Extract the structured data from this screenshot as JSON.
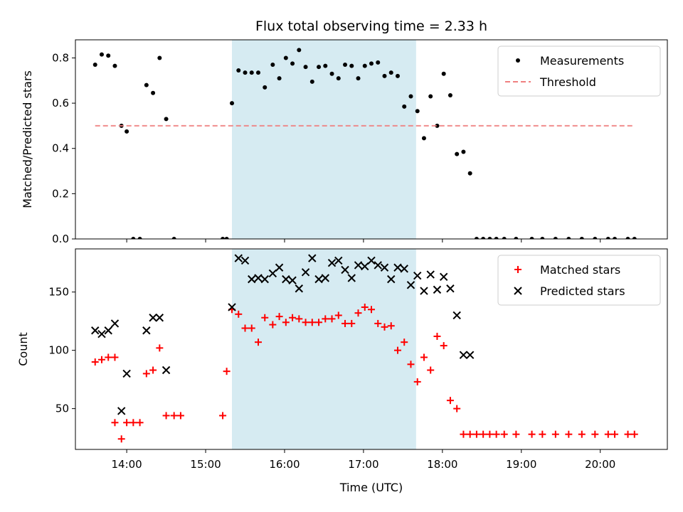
{
  "chart_data": [
    {
      "type": "scatter",
      "title": "Flux total observing time = 2.33 h",
      "xlabel": "",
      "ylabel": "Matched/Predicted stars",
      "xlim": [
        "13:21",
        "20:51"
      ],
      "ylim": [
        0,
        0.88
      ],
      "yticks": [
        0.0,
        0.2,
        0.4,
        0.6,
        0.8
      ],
      "ytick_labels": [
        "0.0",
        "0.2",
        "0.4",
        "0.6",
        "0.8"
      ],
      "shaded_span": {
        "x_start": "15:20",
        "x_end": "17:40",
        "color": "#add8e6"
      },
      "legend": {
        "position": "upper-right"
      },
      "series": [
        {
          "name": "Measurements",
          "color": "#000000",
          "marker": "dot",
          "x": [
            "13:36",
            "13:41",
            "13:46",
            "13:51",
            "13:56",
            "14:00",
            "14:05",
            "14:10",
            "14:15",
            "14:20",
            "14:25",
            "14:30",
            "14:36",
            "15:13",
            "15:16",
            "15:20",
            "15:25",
            "15:30",
            "15:35",
            "15:40",
            "15:45",
            "15:51",
            "15:56",
            "16:01",
            "16:06",
            "16:11",
            "16:16",
            "16:21",
            "16:26",
            "16:31",
            "16:36",
            "16:41",
            "16:46",
            "16:51",
            "16:56",
            "17:01",
            "17:06",
            "17:11",
            "17:16",
            "17:21",
            "17:26",
            "17:31",
            "17:36",
            "17:41",
            "17:46",
            "17:51",
            "17:56",
            "18:01",
            "18:06",
            "18:11",
            "18:16",
            "18:21",
            "18:26",
            "18:31",
            "18:36",
            "18:41",
            "18:47",
            "18:56",
            "19:08",
            "19:16",
            "19:26",
            "19:36",
            "19:46",
            "19:56",
            "20:06",
            "20:11",
            "20:21",
            "20:26"
          ],
          "y": [
            0.77,
            0.815,
            0.81,
            0.765,
            0.5,
            0.475,
            0.0,
            0.0,
            0.68,
            0.645,
            0.8,
            0.53,
            0.0,
            0.0,
            0.0,
            0.6,
            0.745,
            0.735,
            0.735,
            0.735,
            0.67,
            0.77,
            0.71,
            0.8,
            0.775,
            0.835,
            0.76,
            0.695,
            0.76,
            0.765,
            0.73,
            0.71,
            0.77,
            0.765,
            0.71,
            0.765,
            0.775,
            0.78,
            0.72,
            0.735,
            0.72,
            0.585,
            0.63,
            0.565,
            0.445,
            0.63,
            0.5,
            0.73,
            0.635,
            0.375,
            0.385,
            0.29,
            0.0,
            0.0,
            0.0,
            0.0,
            0.0,
            0.0,
            0.0,
            0.0,
            0.0,
            0.0,
            0.0,
            0.0,
            0.0,
            0.0,
            0.0,
            0.0
          ]
        },
        {
          "name": "Threshold",
          "color": "#f08080",
          "line_style": "dashed",
          "x": [
            "13:36",
            "20:26"
          ],
          "y": [
            0.5,
            0.5
          ]
        }
      ]
    },
    {
      "type": "scatter",
      "title": "",
      "xlabel": "Time (UTC)",
      "ylabel": "Count",
      "xlim": [
        "13:21",
        "20:51"
      ],
      "ylim": [
        15,
        187
      ],
      "xticks": [
        "14:00",
        "15:00",
        "16:00",
        "17:00",
        "18:00",
        "19:00",
        "20:00"
      ],
      "xtick_labels": [
        "14:00",
        "15:00",
        "16:00",
        "17:00",
        "18:00",
        "19:00",
        "20:00"
      ],
      "yticks": [
        50,
        100,
        150
      ],
      "ytick_labels": [
        "50",
        "100",
        "150"
      ],
      "shaded_span": {
        "x_start": "15:20",
        "x_end": "17:40",
        "color": "#add8e6"
      },
      "legend": {
        "position": "upper-right"
      },
      "series": [
        {
          "name": "Matched stars",
          "color": "#ff0000",
          "marker": "plus",
          "x": [
            "13:36",
            "13:41",
            "13:46",
            "13:51",
            "13:56",
            "13:51",
            "14:00",
            "14:05",
            "14:10",
            "14:15",
            "14:20",
            "14:25",
            "14:30",
            "14:36",
            "14:41",
            "15:13",
            "15:16",
            "15:20",
            "15:25",
            "15:30",
            "15:35",
            "15:40",
            "15:45",
            "15:51",
            "15:56",
            "16:01",
            "16:06",
            "16:11",
            "16:16",
            "16:21",
            "16:26",
            "16:31",
            "16:36",
            "16:41",
            "16:46",
            "16:51",
            "16:56",
            "17:01",
            "17:06",
            "17:11",
            "17:16",
            "17:21",
            "17:26",
            "17:31",
            "17:36",
            "17:41",
            "17:46",
            "17:51",
            "17:56",
            "18:01",
            "18:06",
            "18:11",
            "18:16",
            "18:21",
            "18:26",
            "18:31",
            "18:36",
            "18:41",
            "18:47",
            "18:56",
            "19:08",
            "19:16",
            "19:26",
            "19:36",
            "19:46",
            "19:56",
            "20:06",
            "20:11",
            "20:21",
            "20:26"
          ],
          "y": [
            90,
            92,
            94,
            94,
            24,
            38,
            38,
            38,
            38,
            80,
            83,
            102,
            44,
            44,
            44,
            44,
            82,
            135,
            131,
            119,
            119,
            107,
            128,
            122,
            129,
            124,
            128,
            127,
            124,
            124,
            124,
            127,
            127,
            130,
            123,
            123,
            132,
            137,
            135,
            123,
            120,
            121,
            100,
            107,
            88,
            73,
            94,
            83,
            112,
            104,
            57,
            50,
            28,
            28,
            28,
            28,
            28,
            28,
            28,
            28,
            28,
            28,
            28,
            28,
            28,
            28,
            28,
            28,
            28,
            28
          ]
        },
        {
          "name": "Predicted stars",
          "color": "#000000",
          "marker": "x",
          "x": [
            "13:36",
            "13:41",
            "13:46",
            "13:51",
            "13:56",
            "14:00",
            "14:15",
            "14:20",
            "14:25",
            "14:30",
            "15:20",
            "15:25",
            "15:30",
            "15:35",
            "15:40",
            "15:45",
            "15:51",
            "15:56",
            "16:01",
            "16:06",
            "16:11",
            "16:16",
            "16:21",
            "16:26",
            "16:31",
            "16:36",
            "16:41",
            "16:46",
            "16:51",
            "16:56",
            "17:01",
            "17:06",
            "17:11",
            "17:16",
            "17:21",
            "17:26",
            "17:31",
            "17:36",
            "17:41",
            "17:46",
            "17:51",
            "17:56",
            "18:01",
            "18:06",
            "18:11",
            "18:16",
            "18:21"
          ],
          "y": [
            117,
            114,
            117,
            123,
            48,
            80,
            117,
            128,
            128,
            83,
            137,
            179,
            177,
            161,
            162,
            161,
            166,
            171,
            161,
            160,
            153,
            167,
            179,
            161,
            162,
            175,
            177,
            169,
            162,
            173,
            172,
            177,
            173,
            171,
            161,
            171,
            170,
            156,
            164,
            151,
            165,
            152,
            163,
            153,
            130,
            96,
            96
          ]
        }
      ]
    }
  ]
}
